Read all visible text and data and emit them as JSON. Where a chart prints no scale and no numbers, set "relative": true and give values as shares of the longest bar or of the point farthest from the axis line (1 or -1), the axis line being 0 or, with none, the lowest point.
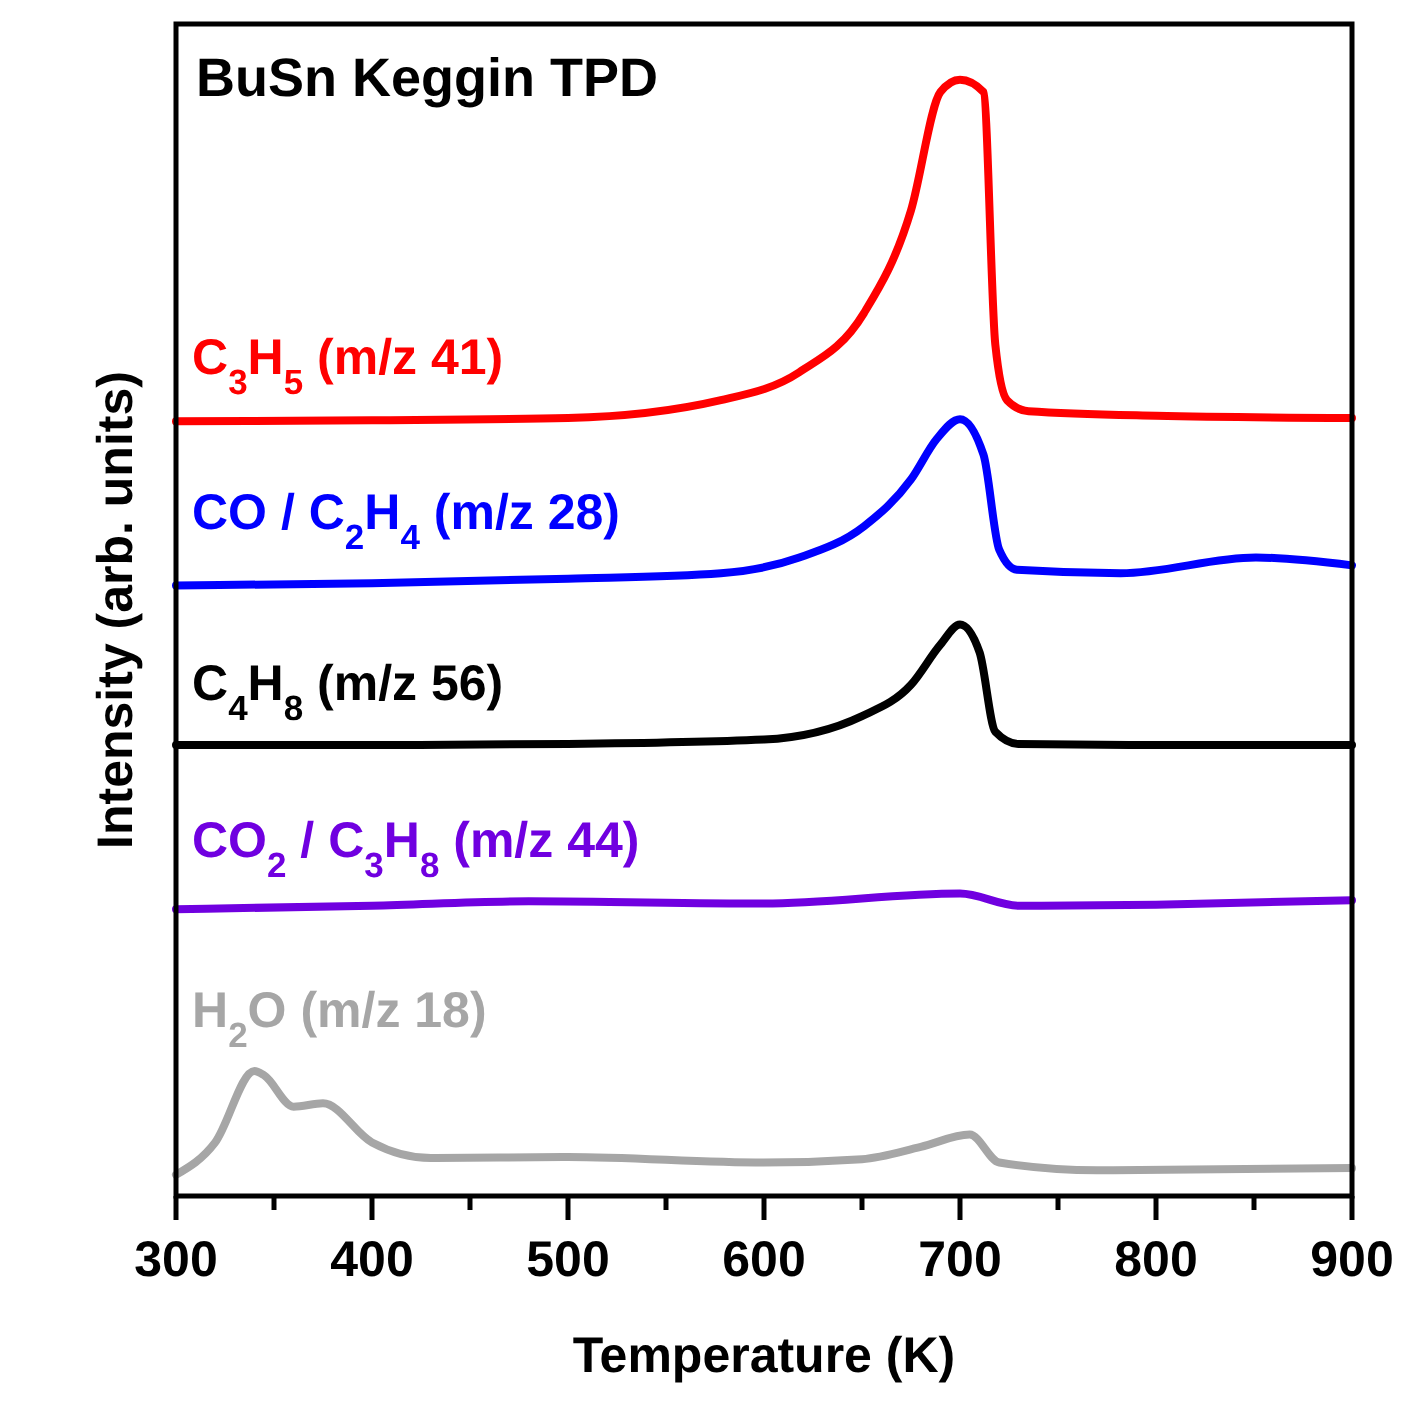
{
  "chart_data": {
    "type": "line",
    "title": "BuSn Keggin TPD",
    "xlabel": "Temperature (K)",
    "ylabel": "Intensity (arb. units)",
    "relative": true,
    "xlim": [
      300,
      900
    ],
    "xticks": [
      300,
      {
        "value": 350,
        "label": null
      },
      400,
      {
        "value": 450,
        "label": null
      },
      500,
      {
        "value": 550,
        "label": null
      },
      600,
      {
        "value": 650,
        "label": null
      },
      700,
      {
        "value": 750,
        "label": null
      },
      800,
      {
        "value": 850,
        "label": null
      },
      900
    ],
    "tick_labels": "x",
    "legend": false,
    "line_style": "solid",
    "marker": "none",
    "series": [
      {
        "name": "C$_{3}$H$_{5}$ (m/z 41)",
        "color": "#ff0000",
        "x": [
          300,
          400,
          500,
          578,
          618,
          651,
          675,
          690,
          700,
          712,
          718,
          724,
          735,
          800,
          900
        ],
        "values": [
          0.694,
          0.695,
          0.697,
          0.713,
          0.738,
          0.791,
          0.883,
          0.989,
          1.0,
          0.989,
          0.763,
          0.713,
          0.703,
          0.699,
          0.697
        ]
      },
      {
        "name": "CO / C$_{2}$H$_{4}$ (m/z 28)",
        "color": "#0000ff",
        "x": [
          300,
          400,
          500,
          578,
          618,
          651,
          675,
          688,
          700,
          712,
          720,
          729,
          782,
          851,
          900
        ],
        "values": [
          0.547,
          0.549,
          0.553,
          0.558,
          0.572,
          0.6,
          0.642,
          0.678,
          0.696,
          0.664,
          0.579,
          0.561,
          0.558,
          0.572,
          0.565
        ]
      },
      {
        "name": "C$_{4}$H$_{8}$ (m/z 56)",
        "color": "#000000",
        "x": [
          300,
          400,
          500,
          600,
          650,
          675,
          690,
          700,
          710,
          718,
          730,
          800,
          900
        ],
        "values": [
          0.404,
          0.404,
          0.405,
          0.409,
          0.43,
          0.458,
          0.494,
          0.512,
          0.487,
          0.416,
          0.405,
          0.404,
          0.404
        ]
      },
      {
        "name": "CO$_{2}$ / C$_{3}$H$_{8}$ (m/z 44)",
        "color": "#7000e0",
        "x": [
          300,
          400,
          480,
          600,
          700,
          730,
          800,
          900
        ],
        "values": [
          0.257,
          0.26,
          0.264,
          0.262,
          0.271,
          0.26,
          0.261,
          0.265
        ]
      },
      {
        "name": "H$_{2}$O (m/z 18)",
        "color": "#a6a6a6",
        "x": [
          300,
          320,
          340,
          345,
          360,
          375,
          400,
          430,
          500,
          600,
          650,
          680,
          705,
          720,
          770,
          900
        ],
        "values": [
          0.019,
          0.048,
          0.112,
          0.108,
          0.08,
          0.083,
          0.048,
          0.034,
          0.035,
          0.03,
          0.033,
          0.044,
          0.055,
          0.03,
          0.023,
          0.025
        ]
      }
    ]
  }
}
